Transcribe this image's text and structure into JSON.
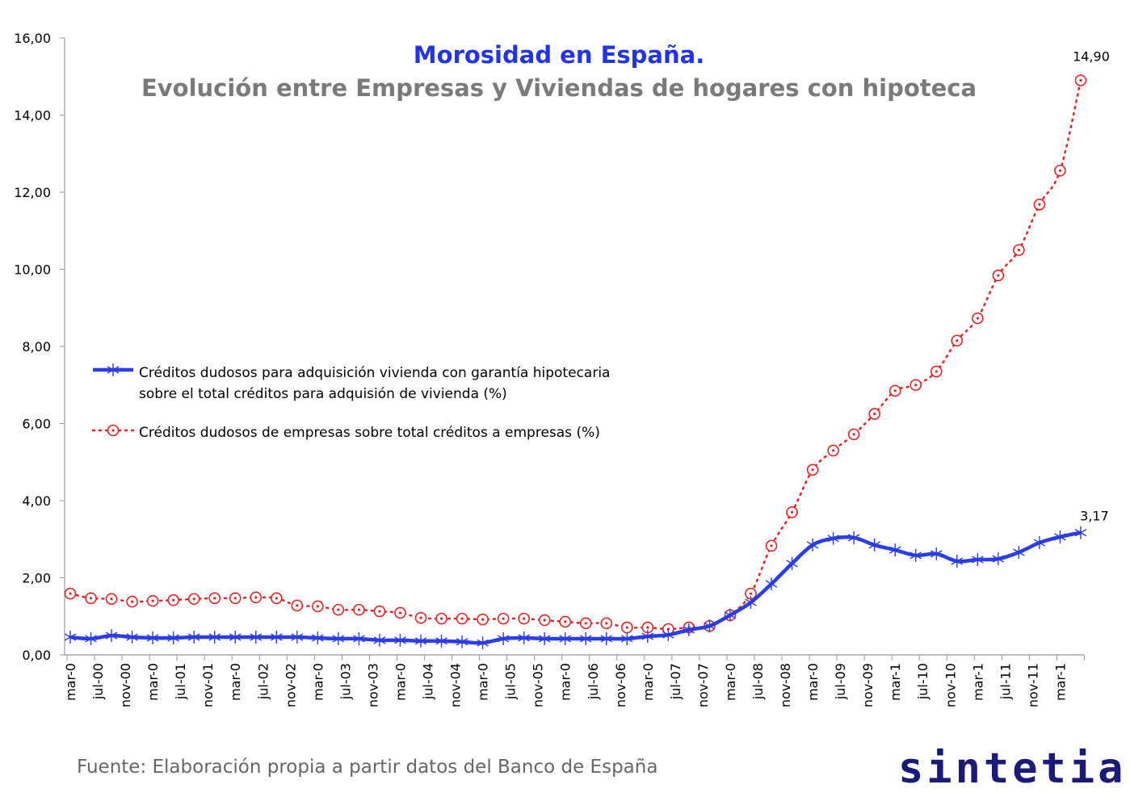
{
  "chart_data": {
    "type": "line",
    "title": "Morosidad en España.",
    "subtitle": "Evolución entre Empresas y Viviendas de hogares con hipoteca",
    "source": "Fuente: Elaboración propia a partir datos del Banco de España",
    "logo": "sintetia",
    "xlabel": "",
    "ylabel": "",
    "ylim": [
      0,
      16
    ],
    "yticks": [
      "0,00",
      "2,00",
      "4,00",
      "6,00",
      "8,00",
      "10,00",
      "12,00",
      "14,00",
      "16,00"
    ],
    "xtick_labels": [
      "mar-0",
      "jul-00",
      "nov-00",
      "mar-0",
      "jul-01",
      "nov-01",
      "mar-0",
      "jul-02",
      "nov-02",
      "mar-0",
      "jul-03",
      "nov-03",
      "mar-0",
      "jul-04",
      "nov-04",
      "mar-0",
      "jul-05",
      "nov-05",
      "mar-0",
      "jul-06",
      "nov-06",
      "mar-0",
      "jul-07",
      "nov-07",
      "mar-0",
      "jul-08",
      "nov-08",
      "mar-0",
      "jul-09",
      "nov-09",
      "mar-1",
      "jul-10",
      "nov-10",
      "mar-1",
      "jul-11",
      "nov-11",
      "mar-1"
    ],
    "x": [
      "2000-03",
      "2000-06",
      "2000-09",
      "2000-12",
      "2001-03",
      "2001-06",
      "2001-09",
      "2001-12",
      "2002-03",
      "2002-06",
      "2002-09",
      "2002-12",
      "2003-03",
      "2003-06",
      "2003-09",
      "2003-12",
      "2004-03",
      "2004-06",
      "2004-09",
      "2004-12",
      "2005-03",
      "2005-06",
      "2005-09",
      "2005-12",
      "2006-03",
      "2006-06",
      "2006-09",
      "2006-12",
      "2007-03",
      "2007-06",
      "2007-09",
      "2007-12",
      "2008-03",
      "2008-06",
      "2008-09",
      "2008-12",
      "2009-03",
      "2009-06",
      "2009-09",
      "2009-12",
      "2010-03",
      "2010-06",
      "2010-09",
      "2010-12",
      "2011-03",
      "2011-06",
      "2011-09",
      "2011-12",
      "2012-03",
      "2012-06"
    ],
    "grid": false,
    "legend_placement": "center-left",
    "series": [
      {
        "name": "Créditos dudosos para adquisición vivienda con garantía hipotecaria sobre el total créditos para adquisión de vivienda (%)",
        "legend_lines": [
          "Créditos dudosos para adquisición vivienda con garantía hipotecaria",
          "sobre el total créditos para adquisión de vivienda (%)"
        ],
        "color": "#2a3cf0",
        "style": "solid-asterisk",
        "values": [
          0.46,
          0.42,
          0.5,
          0.46,
          0.44,
          0.44,
          0.46,
          0.46,
          0.46,
          0.46,
          0.46,
          0.46,
          0.44,
          0.42,
          0.42,
          0.38,
          0.38,
          0.36,
          0.36,
          0.34,
          0.31,
          0.42,
          0.44,
          0.42,
          0.42,
          0.42,
          0.42,
          0.42,
          0.48,
          0.52,
          0.65,
          0.75,
          1.03,
          1.36,
          1.84,
          2.37,
          2.85,
          3.02,
          3.04,
          2.85,
          2.72,
          2.58,
          2.62,
          2.43,
          2.47,
          2.49,
          2.66,
          2.91,
          3.06,
          3.17
        ],
        "end_label": "3,17"
      },
      {
        "name": "Créditos dudosos de empresas sobre total créditos a empresas (%)",
        "legend_lines": [
          "Créditos dudosos de empresas sobre total créditos a empresas (%)"
        ],
        "color": "#f02020",
        "style": "dotted-circle",
        "values": [
          1.59,
          1.47,
          1.45,
          1.38,
          1.4,
          1.42,
          1.45,
          1.47,
          1.47,
          1.49,
          1.47,
          1.28,
          1.26,
          1.17,
          1.17,
          1.13,
          1.09,
          0.96,
          0.94,
          0.94,
          0.92,
          0.94,
          0.94,
          0.9,
          0.86,
          0.82,
          0.82,
          0.71,
          0.71,
          0.67,
          0.71,
          0.75,
          1.03,
          1.59,
          2.83,
          3.7,
          4.8,
          5.3,
          5.72,
          6.25,
          6.85,
          7.0,
          7.35,
          8.15,
          8.73,
          9.84,
          10.5,
          11.68,
          12.56,
          14.9
        ],
        "end_label": "14,90"
      }
    ]
  }
}
